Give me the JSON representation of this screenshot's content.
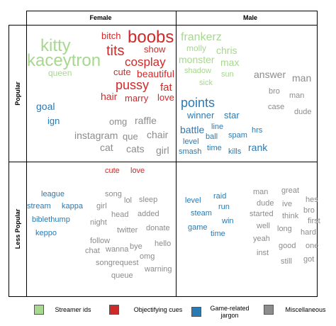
{
  "columns": [
    "Female",
    "Male"
  ],
  "rows": [
    "Popular",
    "Less Popular"
  ],
  "legend": [
    {
      "label": "Streamer ids",
      "color": "#a6d88e"
    },
    {
      "label": "Objectifying cues",
      "color": "#cf2a2a"
    },
    {
      "label": "Game-related jargon",
      "color": "#2a7ab3"
    },
    {
      "label": "Miscellaneous",
      "color": "#8c8c8c"
    }
  ],
  "cells": [
    {
      "words": [
        [
          "kitty",
          "kaceytron",
          "queen"
        ],
        [
          "bitch",
          "boobs",
          "tits",
          "show",
          "cosplay",
          "cute",
          "beautiful",
          "pussy",
          "fat",
          "hair",
          "marry",
          "love"
        ],
        [
          "goal",
          "ign"
        ],
        [
          "omg",
          "raffle",
          "instagram",
          "que",
          "chair",
          "cat",
          "cats",
          "girl"
        ]
      ]
    },
    {
      "words": [
        [
          "frankerz",
          "molly",
          "chris",
          "monster",
          "max",
          "shadow",
          "sun",
          "sick"
        ],
        [],
        [
          "points",
          "winner",
          "star",
          "battle",
          "line",
          "ball",
          "spam",
          "hrs",
          "level",
          "time",
          "smash",
          "kills",
          "rank"
        ],
        [
          "answer",
          "man",
          "bro",
          "man",
          "case",
          "dude"
        ]
      ]
    },
    {
      "words": [
        [],
        [
          "cute",
          "love"
        ],
        [
          "league",
          "stream",
          "kappa",
          "biblethump",
          "keppo"
        ],
        [
          "song",
          "lol",
          "sleep",
          "girl",
          "head",
          "added",
          "night",
          "twitter",
          "donate",
          "follow",
          "chat",
          "wanna",
          "bye",
          "hello",
          "omg",
          "songrequest",
          "warning",
          "queue"
        ]
      ]
    },
    {
      "words": [
        [],
        [],
        [
          "raid",
          "level",
          "run",
          "steam",
          "win",
          "game",
          "time"
        ],
        [
          "man",
          "great",
          "dude",
          "hes",
          "ive",
          "started",
          "bro",
          "think",
          "first",
          "well",
          "long",
          "hard",
          "yeah",
          "good",
          "one",
          "inst",
          "still",
          "got"
        ]
      ]
    }
  ]
}
